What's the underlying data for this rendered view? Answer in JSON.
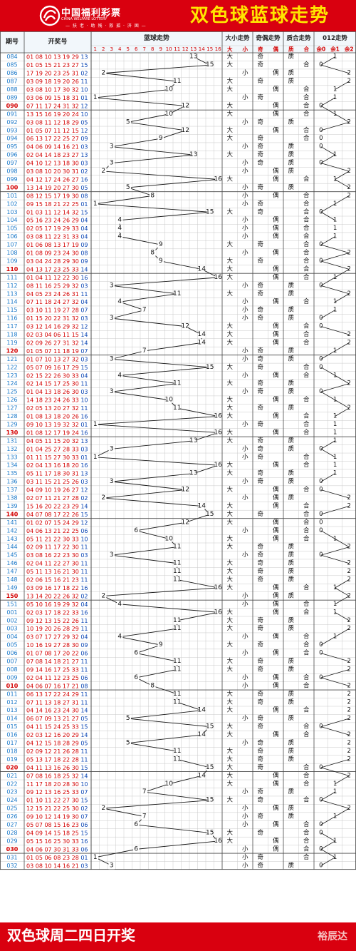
{
  "header": {
    "logo_cn": "中国福利彩票",
    "logo_en": "CHINA WELFARE LOTTERY",
    "slogan": "— 扶 老 · 助 残 · 救 孤 · 济 困 —",
    "title": "双色球蓝球走势"
  },
  "footer": {
    "text": "双色球周二四日开奖",
    "brand": "裕辰达"
  },
  "columns": {
    "issue": "期号",
    "draw": "开奖号",
    "blue_trend": "蓝球走势",
    "size": "大小走势",
    "parity": "奇偶走势",
    "prime": "质合走势",
    "mod3": "012走势",
    "size_labels": [
      "大",
      "小"
    ],
    "parity_labels": [
      "奇",
      "偶"
    ],
    "prime_labels": [
      "质",
      "合"
    ],
    "mod3_labels": [
      "余0",
      "余1",
      "余2"
    ]
  },
  "colors": {
    "brand_red": "#d9000f",
    "title_yellow": "#ffe600",
    "issue_blue": "#1b79c9",
    "blue_ball": "#0b46b4",
    "red_text": "#d40000",
    "grid": "#c9c9c9",
    "divider": "#4a4a4a"
  },
  "chart_data": {
    "type": "line",
    "title": "双色球蓝球走势",
    "x_label": "期号",
    "y_label": "蓝球走势",
    "y_range": [
      1,
      16
    ],
    "draws": [
      {
        "issue": "084",
        "reds": "01 08 10 13 19 29",
        "blue": 13
      },
      {
        "issue": "085",
        "reds": "01 05 15 21 23 27",
        "blue": 15
      },
      {
        "issue": "086",
        "reds": "17 19 20 23 25 31",
        "blue": 2
      },
      {
        "issue": "087",
        "reds": "03 09 18 19 20 26",
        "blue": 11
      },
      {
        "issue": "088",
        "reds": "03 08 10 17 30 32",
        "blue": 10
      },
      {
        "issue": "089",
        "reds": "03 06 09 15 18 31",
        "blue": 1
      },
      {
        "issue": "090",
        "reds": "07 11 17 24 31 32",
        "blue": 12
      },
      {
        "issue": "091",
        "reds": "13 15 16 19 20 24",
        "blue": 10
      },
      {
        "issue": "092",
        "reds": "03 08 11 12 18 29",
        "blue": 5
      },
      {
        "issue": "093",
        "reds": "01 05 07 11 12 15",
        "blue": 12
      },
      {
        "issue": "094",
        "reds": "06 13 17 22 25 27",
        "blue": 9
      },
      {
        "issue": "095",
        "reds": "04 06 09 14 16 21",
        "blue": 3
      },
      {
        "issue": "096",
        "reds": "02 04 14 18 23 27",
        "blue": 13
      },
      {
        "issue": "097",
        "reds": "04 10 12 13 18 30",
        "blue": 3
      },
      {
        "issue": "098",
        "reds": "03 08 10 20 30 31",
        "blue": 2
      },
      {
        "issue": "099",
        "reds": "04 12 17 24 26 27",
        "blue": 16
      },
      {
        "issue": "100",
        "reds": "13 14 19 20 27 30",
        "blue": 5
      },
      {
        "issue": "101",
        "reds": "08 12 15 17 19 30",
        "blue": 8
      },
      {
        "issue": "102",
        "reds": "09 15 18 21 22 25",
        "blue": 1
      },
      {
        "issue": "103",
        "reds": "01 03 11 12 14 32",
        "blue": 15
      },
      {
        "issue": "104",
        "reds": "05 16 23 24 26 29",
        "blue": 4
      },
      {
        "issue": "105",
        "reds": "02 05 17 19 29 33",
        "blue": 4
      },
      {
        "issue": "106",
        "reds": "03 08 11 22 31 33",
        "blue": 4
      },
      {
        "issue": "107",
        "reds": "01 06 08 13 17 19",
        "blue": 9
      },
      {
        "issue": "108",
        "reds": "01 08 09 23 24 30",
        "blue": 8
      },
      {
        "issue": "109",
        "reds": "03 04 24 28 29 30",
        "blue": 9
      },
      {
        "issue": "110",
        "reds": "04 13 17 23 25 33",
        "blue": 14
      },
      {
        "issue": "111",
        "reds": "01 04 11 12 22 30",
        "blue": 16
      },
      {
        "issue": "112",
        "reds": "08 11 16 25 29 32",
        "blue": 3
      },
      {
        "issue": "113",
        "reds": "04 05 23 24 26 31",
        "blue": 11
      },
      {
        "issue": "114",
        "reds": "07 11 18 24 27 32",
        "blue": 4
      },
      {
        "issue": "115",
        "reds": "03 10 11 19 27 28",
        "blue": 7
      },
      {
        "issue": "116",
        "reds": "01 15 20 22 31 32",
        "blue": 3
      },
      {
        "issue": "117",
        "reds": "03 12 14 16 29 32",
        "blue": 12
      },
      {
        "issue": "118",
        "reds": "02 03 04 06 11 15",
        "blue": 14
      },
      {
        "issue": "119",
        "reds": "02 09 26 27 31 32",
        "blue": 14
      },
      {
        "issue": "120",
        "reds": "01 05 07 11 18 19",
        "blue": 7
      },
      {
        "issue": "121",
        "reds": "01 07 10 13 27 32",
        "blue": 3
      },
      {
        "issue": "122",
        "reds": "05 07 09 16 17 29",
        "blue": 15
      },
      {
        "issue": "123",
        "reds": "02 15 22 26 30 33",
        "blue": 4
      },
      {
        "issue": "124",
        "reds": "02 14 15 17 25 30",
        "blue": 11
      },
      {
        "issue": "125",
        "reds": "01 04 13 18 26 30",
        "blue": 3
      },
      {
        "issue": "126",
        "reds": "14 18 23 24 26 33",
        "blue": 10
      },
      {
        "issue": "127",
        "reds": "02 05 13 20 27 32",
        "blue": 11
      },
      {
        "issue": "128",
        "reds": "01 08 13 18 20 26",
        "blue": 16
      },
      {
        "issue": "129",
        "reds": "09 10 13 19 32 32",
        "blue": 1
      },
      {
        "issue": "130",
        "reds": "01 08 12 17 19 24",
        "blue": 16
      },
      {
        "issue": "131",
        "reds": "04 05 11 15 20 32",
        "blue": 13
      },
      {
        "issue": "132",
        "reds": "01 04 25 27 28 33",
        "blue": 3
      },
      {
        "issue": "133",
        "reds": "01 11 15 27 30 33",
        "blue": 1
      },
      {
        "issue": "134",
        "reds": "02 04 13 16 18 20",
        "blue": 16
      },
      {
        "issue": "135",
        "reds": "05 11 17 18 30 31",
        "blue": 13
      },
      {
        "issue": "136",
        "reds": "03 11 15 21 25 26",
        "blue": 3
      },
      {
        "issue": "137",
        "reds": "04 09 10 19 26 27",
        "blue": 12
      },
      {
        "issue": "138",
        "reds": "02 07 11 21 27 28",
        "blue": 2
      },
      {
        "issue": "139",
        "reds": "15 16 20 22 23 29",
        "blue": 14
      },
      {
        "issue": "140",
        "reds": "04 07 08 17 22 26",
        "blue": 15
      },
      {
        "issue": "141",
        "reds": "01 02 07 15 24 29",
        "blue": 12
      },
      {
        "issue": "142",
        "reds": "04 06 13 21 22 25",
        "blue": 6
      },
      {
        "issue": "143",
        "reds": "05 11 21 22 30 33",
        "blue": 10
      },
      {
        "issue": "144",
        "reds": "02 09 11 17 22 30",
        "blue": 11
      },
      {
        "issue": "145",
        "reds": "03 08 16 22 23 30",
        "blue": 3
      },
      {
        "issue": "146",
        "reds": "02 04 11 22 27 30",
        "blue": 11
      },
      {
        "issue": "147",
        "reds": "05 11 13 16 21 30",
        "blue": 11
      },
      {
        "issue": "148",
        "reds": "02 06 15 16 21 23",
        "blue": 11
      },
      {
        "issue": "149",
        "reds": "03 09 16 17 18 22",
        "blue": 16
      },
      {
        "issue": "150",
        "reds": "13 14 20 22 26 32",
        "blue": 2
      },
      {
        "issue": "151",
        "reds": "05 10 16 19 29 32",
        "blue": 4
      },
      {
        "issue": "001",
        "reds": "02 03 17 18 22 33",
        "blue": 16
      },
      {
        "issue": "002",
        "reds": "09 12 13 15 22 26",
        "blue": 11
      },
      {
        "issue": "003",
        "reds": "10 19 20 26 28 29",
        "blue": 11
      },
      {
        "issue": "004",
        "reds": "03 07 17 27 29 32",
        "blue": 4
      },
      {
        "issue": "005",
        "reds": "10 16 19 27 28 30",
        "blue": 9
      },
      {
        "issue": "006",
        "reds": "01 07 08 17 20 22",
        "blue": 6
      },
      {
        "issue": "007",
        "reds": "07 08 14 18 21 27",
        "blue": 11
      },
      {
        "issue": "008",
        "reds": "09 14 16 17 25 33",
        "blue": 11
      },
      {
        "issue": "009",
        "reds": "02 04 11 12 23 25",
        "blue": 6
      },
      {
        "issue": "010",
        "reds": "04 06 07 16 17 21",
        "blue": 8
      },
      {
        "issue": "011",
        "reds": "06 13 17 22 24 29",
        "blue": 11
      },
      {
        "issue": "012",
        "reds": "07 11 13 18 27 31",
        "blue": 11
      },
      {
        "issue": "013",
        "reds": "04 14 16 23 24 30",
        "blue": 14
      },
      {
        "issue": "014",
        "reds": "06 07 09 13 21 27",
        "blue": 5
      },
      {
        "issue": "015",
        "reds": "04 11 15 24 25 33",
        "blue": 15
      },
      {
        "issue": "016",
        "reds": "02 03 12 16 20 29",
        "blue": 14
      },
      {
        "issue": "017",
        "reds": "04 12 15 18 28 29",
        "blue": 5
      },
      {
        "issue": "018",
        "reds": "02 09 12 21 26 28",
        "blue": 11
      },
      {
        "issue": "019",
        "reds": "05 13 17 18 22 28",
        "blue": 11
      },
      {
        "issue": "020",
        "reds": "04 11 13 16 26 30",
        "blue": 15
      },
      {
        "issue": "021",
        "reds": "07 08 16 18 25 32",
        "blue": 14
      },
      {
        "issue": "022",
        "reds": "11 17 18 20 28 30",
        "blue": 10
      },
      {
        "issue": "023",
        "reds": "09 12 13 16 25 33",
        "blue": 7
      },
      {
        "issue": "024",
        "reds": "01 10 11 22 27 30",
        "blue": 15
      },
      {
        "issue": "025",
        "reds": "12 15 21 22 25 30",
        "blue": 2
      },
      {
        "issue": "026",
        "reds": "09 10 12 14 19 30",
        "blue": 7
      },
      {
        "issue": "027",
        "reds": "05 07 08 15 16 23",
        "blue": 6
      },
      {
        "issue": "028",
        "reds": "04 09 14 15 18 25",
        "blue": 15
      },
      {
        "issue": "029",
        "reds": "05 15 16 25 30 33",
        "blue": 16
      },
      {
        "issue": "030",
        "reds": "04 06 07 30 31 33",
        "blue": 6
      },
      {
        "issue": "031",
        "reds": "01 05 06 08 23 28",
        "blue": 1
      },
      {
        "issue": "032",
        "reds": "03 08 10 14 16 21",
        "blue": 3
      }
    ]
  }
}
